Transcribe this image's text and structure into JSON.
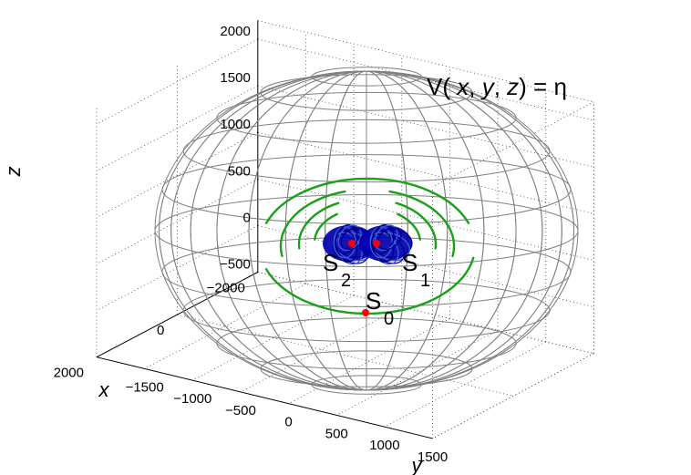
{
  "chart_data": {
    "type": "surface3d",
    "title": "",
    "xlabel": "x",
    "ylabel": "y",
    "zlabel": "z",
    "x_ticks": [
      -2000,
      0,
      2000
    ],
    "y_ticks": [
      -1500,
      -1000,
      -500,
      0,
      500,
      1000,
      1500
    ],
    "z_ticks": [
      -500,
      0,
      500,
      1000,
      1500,
      2000
    ],
    "x_tick_labels": [
      "−2000",
      "0",
      "2000"
    ],
    "y_tick_labels": [
      "−1500",
      "−1000",
      "−500",
      "0",
      "500",
      "1000",
      "1500"
    ],
    "z_tick_labels": [
      "−500",
      "0",
      "500",
      "1000",
      "1500",
      "2000"
    ],
    "grid": true,
    "annotation": {
      "prefix": "V(",
      "vars": [
        "x",
        "y",
        "z"
      ],
      "sep": ",",
      "suffix": ") = η"
    },
    "points": [
      {
        "letter": "S",
        "sub": "0",
        "y": 0,
        "z": -450
      },
      {
        "letter": "S",
        "sub": "1",
        "y": 60,
        "z": 200
      },
      {
        "letter": "S",
        "sub": "2",
        "y": -60,
        "z": 200
      }
    ],
    "surface_color": "#808080",
    "orbit_color": "#1aa01a",
    "cluster_color": "#0000b0",
    "point_color": "#ff0000"
  }
}
